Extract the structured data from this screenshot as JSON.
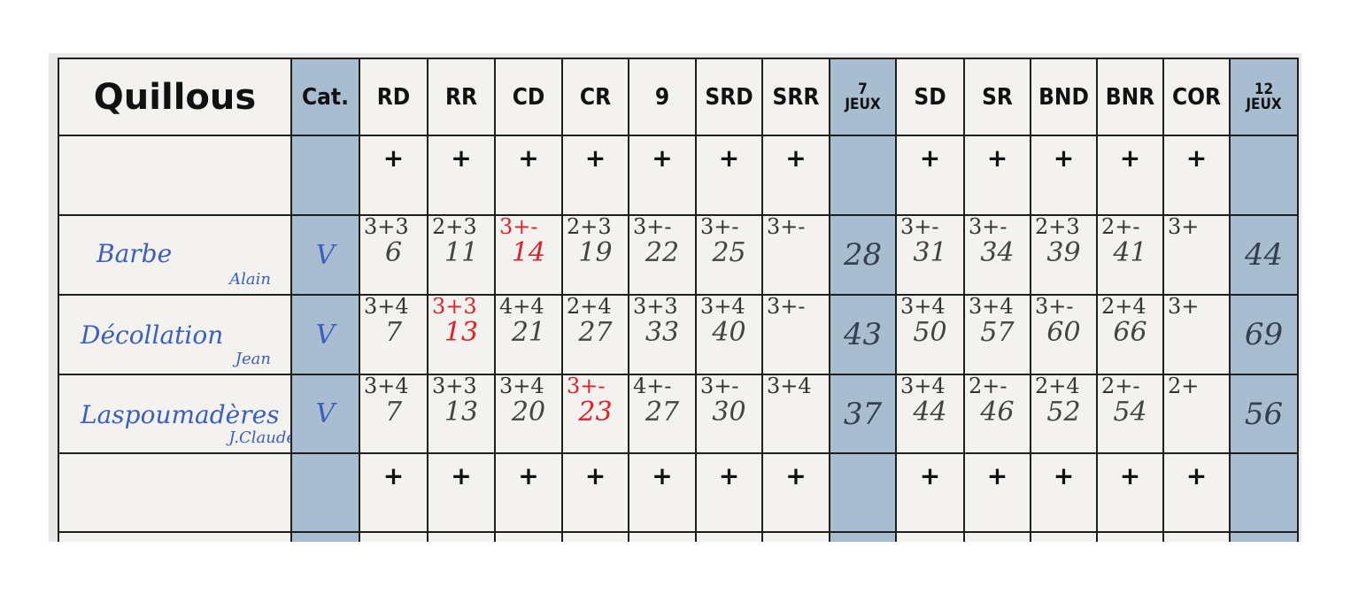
{
  "title": "Quillous",
  "columns": [
    "Cat.",
    "RD",
    "RR",
    "CD",
    "CR",
    "9",
    "SRD",
    "SRR",
    "7\nJEUX",
    "SD",
    "SR",
    "BND",
    "BNR",
    "COR",
    "12\nJEUX"
  ],
  "rows": [
    {
      "kind": "blank",
      "cells": [
        "",
        "+",
        "+",
        "+",
        "+",
        "+",
        "+",
        "+",
        "",
        "+",
        "+",
        "+",
        "+",
        "+",
        ""
      ]
    },
    {
      "kind": "player",
      "name": "Barbe",
      "first_name": "Alain",
      "cat": "V",
      "cells": [
        {
          "top": "3+3",
          "total": 6
        },
        {
          "top": "2+3",
          "total": 11
        },
        {
          "top": "3+-",
          "total": 14
        },
        {
          "top": "2+3",
          "total": 19
        },
        {
          "top": "3+-",
          "total": 22
        },
        {
          "top": "3+-",
          "total": 25
        },
        {
          "top": "3+-"
        },
        {
          "total": 28
        },
        {
          "top": "3+-",
          "total": 31
        },
        {
          "top": "3+-",
          "total": 34
        },
        {
          "top": "2+3",
          "total": 39
        },
        {
          "top": "2+-",
          "total": 41
        },
        {
          "top": "3+"
        },
        {
          "total": 44
        }
      ]
    },
    {
      "kind": "player",
      "name": "Décollation",
      "first_name": "Jean",
      "cat": "V",
      "cells": [
        {
          "top": "3+4",
          "total": 7
        },
        {
          "top": "3+3",
          "total": 13
        },
        {
          "top": "4+4",
          "total": 21
        },
        {
          "top": "2+4",
          "total": 27
        },
        {
          "top": "3+3",
          "total": 33
        },
        {
          "top": "3+4",
          "total": 40
        },
        {
          "top": "3+-"
        },
        {
          "total": 43
        },
        {
          "top": "3+4",
          "total": 50
        },
        {
          "top": "3+4",
          "total": 57
        },
        {
          "top": "3+-",
          "total": 60
        },
        {
          "top": "2+4",
          "total": 66
        },
        {
          "top": "3+"
        },
        {
          "total": 69
        }
      ]
    },
    {
      "kind": "player",
      "name": "Laspoumadères",
      "first_name": "J.Claude",
      "cat": "V",
      "cells": [
        {
          "top": "3+4",
          "total": 7
        },
        {
          "top": "3+3",
          "total": 13
        },
        {
          "top": "3+4",
          "total": 20
        },
        {
          "top": "3+-",
          "total": 23
        },
        {
          "top": "4+-",
          "total": 27
        },
        {
          "top": "3+-",
          "total": 30
        },
        {
          "top": "3+4"
        },
        {
          "total": 37
        },
        {
          "top": "3+4",
          "total": 44
        },
        {
          "top": "2+-",
          "total": 46
        },
        {
          "top": "2+4",
          "total": 52
        },
        {
          "top": "2+-",
          "total": 54
        },
        {
          "top": "2+"
        },
        {
          "total": 56
        }
      ]
    },
    {
      "kind": "blank",
      "cells": [
        "",
        "+",
        "+",
        "+",
        "+",
        "+",
        "+",
        "+",
        "",
        "+",
        "+",
        "+",
        "+",
        "+",
        ""
      ]
    },
    {
      "kind": "blank",
      "cells": [
        "",
        "+",
        "+",
        "+",
        "+",
        "+",
        "+",
        "+",
        "",
        "+",
        "+",
        "+",
        "+",
        "+",
        ""
      ]
    }
  ]
}
